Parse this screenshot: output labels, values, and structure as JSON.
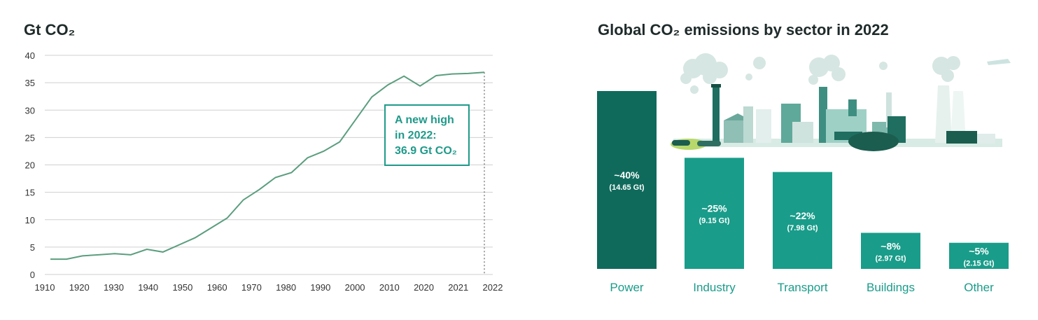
{
  "chart_data": [
    {
      "type": "line",
      "title": "Gt CO₂",
      "xlabel": "",
      "ylabel": "Gt CO₂",
      "x_tick_labels": [
        "1910",
        "1920",
        "1930",
        "1940",
        "1950",
        "1960",
        "1970",
        "1980",
        "1990",
        "2000",
        "2010",
        "2020",
        "2021",
        "2022"
      ],
      "y_ticks": [
        0,
        5,
        10,
        15,
        20,
        25,
        30,
        35,
        40
      ],
      "ylim": [
        0,
        40
      ],
      "grid": "horizontal",
      "series": [
        {
          "values": [
            2.8,
            2.8,
            3.4,
            3.6,
            3.8,
            3.6,
            4.6,
            4.1,
            5.4,
            6.7,
            8.5,
            10.3,
            13.6,
            15.5,
            17.7,
            18.6,
            21.3,
            22.5,
            24.2,
            28.3,
            32.4,
            34.6,
            36.2,
            34.4,
            36.3,
            36.6,
            36.7,
            36.9
          ]
        }
      ],
      "annotation": {
        "lines": [
          "A new high",
          "in 2022:",
          "36.9 Gt CO₂"
        ]
      },
      "colors": {
        "line": "#5a9e7e",
        "grid": "#cfcfcf",
        "annotation": "#1f9a8a"
      }
    },
    {
      "type": "bar",
      "title": "Global CO₂ emissions by sector in 2022",
      "categories": [
        "Power",
        "Industry",
        "Transport",
        "Buildings",
        "Other"
      ],
      "values": [
        14.65,
        9.15,
        7.98,
        2.97,
        2.15
      ],
      "percent_labels": [
        "~40%",
        "~25%",
        "~22%",
        "~8%",
        "~5%"
      ],
      "value_labels": [
        "(14.65 Gt)",
        "(9.15 Gt)",
        "(7.98 Gt)",
        "(2.97 Gt)",
        "(2.15 Gt)"
      ],
      "colors": [
        "#0f6a5c",
        "#1a9c8a",
        "#1a9c8a",
        "#1a9c8a",
        "#1a9c8a"
      ]
    }
  ]
}
